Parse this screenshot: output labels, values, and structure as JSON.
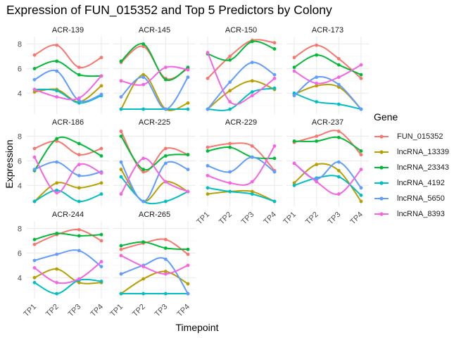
{
  "title": "Expression of FUN_015352 and Top 5 Predictors by Colony",
  "xlabel": "Timepoint",
  "ylabel": "Expression",
  "legend_title": "Gene",
  "colors": {
    "FUN_015352": "#F8766D",
    "lncRNA_13339": "#B79F00",
    "lncRNA_23343": "#00BA38",
    "lncRNA_4192": "#00BFC4",
    "lncRNA_5650": "#619CFF",
    "lncRNA_8393": "#F564E3"
  },
  "chart_data": {
    "type": "line",
    "smoothed": true,
    "grid": true,
    "legend_position": "right",
    "timepoints": [
      "TP1",
      "TP2",
      "TP3",
      "TP4"
    ],
    "y_ticks": [
      4,
      6,
      8
    ],
    "ylim": [
      2.3,
      8.6
    ],
    "genes": [
      "FUN_015352",
      "lncRNA_13339",
      "lncRNA_23343",
      "lncRNA_4192",
      "lncRNA_5650",
      "lncRNA_8393"
    ],
    "panels": [
      {
        "colony": "ACR-139",
        "series": {
          "FUN_015352": [
            7.1,
            7.9,
            6.1,
            6.9
          ],
          "lncRNA_13339": [
            4.1,
            4.3,
            3.3,
            4.6
          ],
          "lncRNA_23343": [
            6.0,
            6.6,
            5.5,
            5.4
          ],
          "lncRNA_4192": [
            4.3,
            4.2,
            3.2,
            3.8
          ],
          "lncRNA_5650": [
            5.1,
            5.8,
            3.4,
            3.9
          ],
          "lncRNA_8393": [
            4.3,
            3.7,
            3.6,
            5.4
          ]
        }
      },
      {
        "colony": "ACR-145",
        "series": {
          "FUN_015352": [
            6.5,
            7.8,
            5.2,
            6.0
          ],
          "lncRNA_13339": [
            2.7,
            5.5,
            2.7,
            3.2
          ],
          "lncRNA_23343": [
            6.6,
            8.0,
            5.1,
            6.1
          ],
          "lncRNA_4192": [
            2.7,
            2.7,
            2.7,
            2.7
          ],
          "lncRNA_5650": [
            3.7,
            5.3,
            2.7,
            5.3
          ],
          "lncRNA_8393": [
            5.0,
            4.7,
            6.1,
            5.9
          ]
        }
      },
      {
        "colony": "ACR-150",
        "series": {
          "FUN_015352": [
            5.2,
            7.0,
            8.3,
            8.1
          ],
          "lncRNA_13339": [
            2.7,
            4.2,
            5.0,
            4.3
          ],
          "lncRNA_23343": [
            7.2,
            6.7,
            8.2,
            7.6
          ],
          "lncRNA_4192": [
            2.7,
            2.7,
            4.1,
            4.4
          ],
          "lncRNA_5650": [
            2.7,
            4.9,
            6.5,
            5.5
          ],
          "lncRNA_8393": [
            7.3,
            3.3,
            3.8,
            5.2
          ]
        }
      },
      {
        "colony": "ACR-173",
        "series": {
          "FUN_015352": [
            6.9,
            7.9,
            6.8,
            5.2
          ],
          "lncRNA_13339": [
            3.9,
            4.6,
            4.5,
            2.7
          ],
          "lncRNA_23343": [
            6.1,
            7.1,
            6.3,
            5.5
          ],
          "lncRNA_4192": [
            4.0,
            3.3,
            3.1,
            2.7
          ],
          "lncRNA_5650": [
            3.8,
            5.3,
            4.7,
            2.7
          ],
          "lncRNA_8393": [
            5.8,
            4.8,
            5.3,
            6.3
          ]
        }
      },
      {
        "colony": "ACR-186",
        "series": {
          "FUN_015352": [
            7.0,
            7.6,
            6.5,
            7.0
          ],
          "lncRNA_13339": [
            2.7,
            4.2,
            3.8,
            4.2
          ],
          "lncRNA_23343": [
            5.2,
            7.8,
            7.4,
            6.4
          ],
          "lncRNA_4192": [
            2.7,
            3.6,
            2.7,
            3.3
          ],
          "lncRNA_5650": [
            5.3,
            5.9,
            4.8,
            5.1
          ],
          "lncRNA_8393": [
            6.3,
            3.4,
            5.7,
            5.0
          ]
        }
      },
      {
        "colony": "ACR-225",
        "series": {
          "FUN_015352": [
            8.4,
            5.1,
            7.0,
            6.5
          ],
          "lncRNA_13339": [
            5.3,
            2.7,
            4.3,
            3.5
          ],
          "lncRNA_23343": [
            8.0,
            5.3,
            6.4,
            6.5
          ],
          "lncRNA_4192": [
            4.7,
            2.7,
            2.7,
            3.5
          ],
          "lncRNA_5650": [
            5.9,
            2.7,
            5.8,
            5.3
          ],
          "lncRNA_8393": [
            3.3,
            6.2,
            4.3,
            3.5
          ]
        }
      },
      {
        "colony": "ACR-229",
        "series": {
          "FUN_015352": [
            7.1,
            7.4,
            7.2,
            5.2
          ],
          "lncRNA_13339": [
            3.3,
            3.5,
            3.5,
            2.7
          ],
          "lncRNA_23343": [
            6.8,
            7.1,
            6.3,
            6.2
          ],
          "lncRNA_4192": [
            3.8,
            3.5,
            3.3,
            2.7
          ],
          "lncRNA_5650": [
            5.6,
            5.1,
            6.3,
            5.1
          ],
          "lncRNA_8393": [
            4.8,
            4.2,
            4.3,
            7.2
          ]
        }
      },
      {
        "colony": "ACR-237",
        "series": {
          "FUN_015352": [
            7.5,
            8.0,
            8.4,
            6.5
          ],
          "lncRNA_13339": [
            4.2,
            5.7,
            5.2,
            2.7
          ],
          "lncRNA_23343": [
            7.6,
            7.6,
            7.9,
            6.8
          ],
          "lncRNA_4192": [
            4.0,
            4.6,
            4.7,
            3.2
          ],
          "lncRNA_5650": [
            5.8,
            4.5,
            5.9,
            3.8
          ],
          "lncRNA_8393": [
            5.8,
            4.3,
            3.3,
            5.3
          ]
        }
      },
      {
        "colony": "ACR-244",
        "series": {
          "FUN_015352": [
            6.7,
            7.5,
            7.9,
            7.0
          ],
          "lncRNA_13339": [
            4.0,
            4.7,
            3.6,
            3.6
          ],
          "lncRNA_23343": [
            7.1,
            7.6,
            7.4,
            7.5
          ],
          "lncRNA_4192": [
            3.6,
            2.7,
            3.8,
            3.7
          ],
          "lncRNA_5650": [
            5.4,
            5.9,
            6.2,
            4.9
          ],
          "lncRNA_8393": [
            4.8,
            3.6,
            3.9,
            5.3
          ]
        }
      },
      {
        "colony": "ACR-265",
        "series": {
          "FUN_015352": [
            6.3,
            6.8,
            7.1,
            5.9
          ],
          "lncRNA_13339": [
            2.7,
            3.9,
            4.5,
            3.5
          ],
          "lncRNA_23343": [
            6.6,
            6.9,
            6.4,
            6.3
          ],
          "lncRNA_4192": [
            2.7,
            2.7,
            2.7,
            2.7
          ],
          "lncRNA_5650": [
            4.3,
            5.0,
            5.5,
            2.7
          ],
          "lncRNA_8393": [
            5.8,
            4.9,
            4.3,
            5.0
          ]
        }
      }
    ]
  }
}
